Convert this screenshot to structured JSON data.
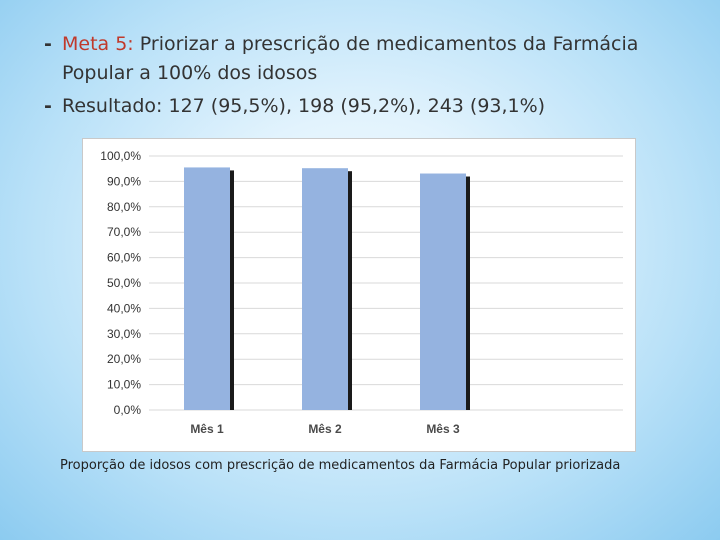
{
  "bullets": [
    {
      "label": "Meta 5:",
      "text": " Priorizar a prescrição de medicamentos da Farmácia Popular a 100% dos idosos"
    },
    {
      "label": "",
      "text": "Resultado: 127 (95,5%), 198 (95,2%), 243 (93,1%)"
    }
  ],
  "caption": "Proporção de idosos com prescrição de medicamentos da Farmácia Popular priorizada",
  "colors": {
    "bar": "#95b3e0",
    "bar_shadow": "#1a1a1a",
    "meta_label": "#c0392b",
    "grid": "#d9d9d9"
  },
  "chart_data": {
    "type": "bar",
    "categories": [
      "Mês 1",
      "Mês 2",
      "Mês 3"
    ],
    "values": [
      95.5,
      95.2,
      93.1
    ],
    "ylim": [
      0,
      100
    ],
    "yticks": [
      "0,0%",
      "10,0%",
      "20,0%",
      "30,0%",
      "40,0%",
      "50,0%",
      "60,0%",
      "70,0%",
      "80,0%",
      "90,0%",
      "100,0%"
    ],
    "title": "",
    "xlabel": "",
    "ylabel": "",
    "grid": true
  }
}
